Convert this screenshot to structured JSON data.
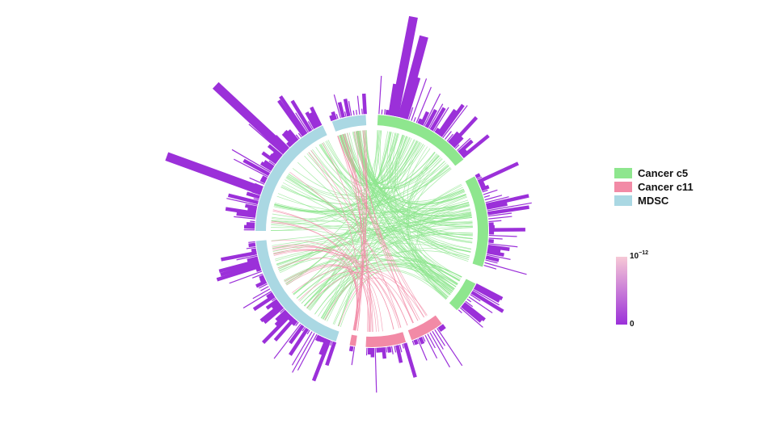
{
  "chart_data": {
    "type": "circos",
    "legend": {
      "items": [
        {
          "label": "Cancer c5",
          "color": "#8ee68e"
        },
        {
          "label": "Cancer c11",
          "color": "#f28aa6"
        },
        {
          "label": "MDSC",
          "color": "#aad8e3"
        }
      ]
    },
    "colorbar": {
      "max_label": "10",
      "max_exponent": "−12",
      "min_label": "0",
      "low_color": "#9b30d9",
      "high_color": "#f7c9d6"
    },
    "sectors": [
      {
        "group": "Cancer c5",
        "start_deg": 3,
        "end_deg": 52
      },
      {
        "group": "Cancer c5",
        "start_deg": 62,
        "end_deg": 108
      },
      {
        "group": "Cancer c5",
        "start_deg": 117,
        "end_deg": 133
      },
      {
        "group": "Cancer c11",
        "start_deg": 143,
        "end_deg": 160
      },
      {
        "group": "Cancer c11",
        "start_deg": 163,
        "end_deg": 183
      },
      {
        "group": "Cancer c11",
        "start_deg": 188,
        "end_deg": 191
      },
      {
        "group": "MDSC",
        "start_deg": 198,
        "end_deg": 265
      },
      {
        "group": "MDSC",
        "start_deg": 270,
        "end_deg": 335
      },
      {
        "group": "MDSC",
        "start_deg": 340,
        "end_deg": 357
      }
    ],
    "prominent_bars": [
      {
        "angle_deg": 11,
        "length": 1.0
      },
      {
        "angle_deg": 15,
        "length": 0.82
      },
      {
        "angle_deg": 290,
        "length": 1.0
      },
      {
        "angle_deg": 313,
        "length": 0.95
      }
    ],
    "links": {
      "Cancer c5_to_MDSC": 160,
      "Cancer c11_to_MDSC": 40,
      "Cancer c5_to_Cancer c5": 25
    }
  }
}
